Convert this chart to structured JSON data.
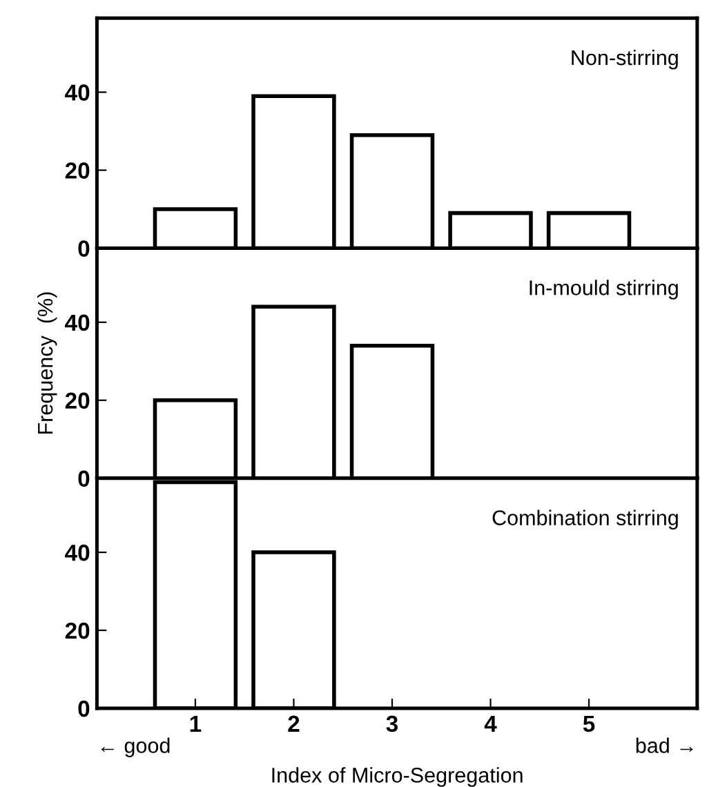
{
  "chart_data": [
    {
      "type": "bar",
      "title": "Non-stirring",
      "categories": [
        "1",
        "2",
        "3",
        "4",
        "5"
      ],
      "values": [
        10,
        39,
        29,
        9,
        9
      ],
      "color": "#ffffff",
      "ylim": [
        0,
        59
      ],
      "yticks": [
        0,
        20,
        40
      ],
      "tick_labels": "y",
      "grid": false,
      "legend": false
    },
    {
      "type": "bar",
      "title": "In-mould stirring",
      "ylabel": "Frequency  (%)",
      "categories": [
        "1",
        "2",
        "3",
        "4",
        "5"
      ],
      "values": [
        20,
        44,
        34,
        null,
        null
      ],
      "color": "#ffffff",
      "ylim": [
        0,
        59
      ],
      "yticks": [
        0,
        20,
        40
      ],
      "tick_labels": "y",
      "grid": false,
      "legend": false
    },
    {
      "type": "bar",
      "title": "Combination stirring",
      "xlabel": "Index of Micro-Segregation",
      "annotations": [
        "← good",
        "bad →"
      ],
      "categories": [
        "1",
        "2",
        "3",
        "4",
        "5"
      ],
      "values": [
        58,
        40,
        null,
        null,
        null
      ],
      "color": "#ffffff",
      "ylim": [
        0,
        59
      ],
      "yticks": [
        0,
        20,
        40
      ],
      "grid": false,
      "legend": false
    }
  ]
}
